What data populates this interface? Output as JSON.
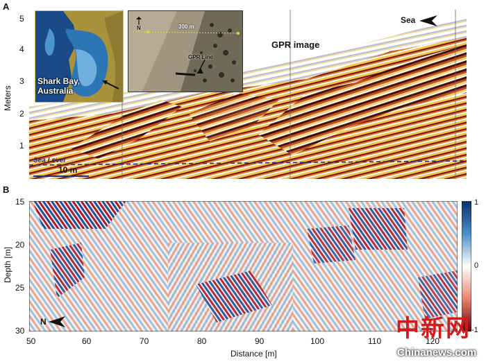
{
  "panel_a": {
    "letter": "A",
    "y_axis_label": "Meters",
    "y_ticks": [
      "5",
      "4",
      "3",
      "2",
      "1"
    ],
    "title": "GPR image",
    "sea_label": "Sea",
    "sea_level_label": "Sea Level",
    "scale_label": "10 m",
    "inset_map_label_line1": "Shark Bay,",
    "inset_map_label_line2": "Australia",
    "inset_photo_north": "N",
    "inset_photo_distance": "300 m",
    "inset_photo_line_label": "GPR Line"
  },
  "panel_b": {
    "letter": "B",
    "y_axis_label": "Depth [m]",
    "y_ticks": [
      "15",
      "20",
      "25",
      "30"
    ],
    "x_axis_label": "Distance [m]",
    "x_ticks": [
      "50",
      "60",
      "70",
      "80",
      "90",
      "100",
      "110",
      "120"
    ],
    "north_label": "N",
    "colorbar_ticks": [
      "1",
      "0",
      "-1"
    ]
  },
  "watermark": {
    "chinese": "中新网",
    "site": "Chinanews.com"
  },
  "colors": {
    "radar_dark": "#6b1010",
    "radar_orange": "#e07a2a",
    "radar_yellow": "#f0c64a",
    "sea_level_line": "#1c2f80",
    "positive_blue": "#1f4e9c",
    "negative_red": "#b2182b"
  }
}
